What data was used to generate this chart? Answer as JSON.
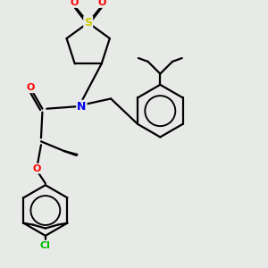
{
  "bg_color": "#e8eae8",
  "S_color": "#cccc00",
  "O_color": "#ff0000",
  "N_color": "#0000ee",
  "Cl_color": "#00bb00",
  "C_color": "#000000",
  "bond_color": "#000000",
  "bond_lw": 1.6,
  "xlim": [
    -0.3,
    5.8
  ],
  "ylim": [
    -0.5,
    5.5
  ]
}
